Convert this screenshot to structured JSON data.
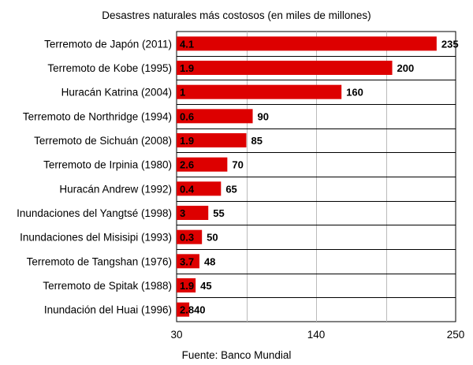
{
  "chart_data": {
    "type": "bar",
    "orientation": "horizontal",
    "title": "Desastres naturales más costosos (en miles de millones)",
    "source": "Fuente: Banco Mundial",
    "xlim": [
      30,
      250
    ],
    "xticks": [
      "30",
      "140",
      "250"
    ],
    "bar_color": "#dd0000",
    "grid": true,
    "categories": [
      "Terremoto de Japón (2011)",
      "Terremoto de Kobe (1995)",
      "Huracán Katrina (2004)",
      "Terremoto de Northridge (1994)",
      "Terremoto de Sichuán (2008)",
      "Terremoto de Irpinia (1980)",
      "Huracán Andrew (1992)",
      "Inundaciones del Yangtsé (1998)",
      "Inundaciones del Misisipi (1993)",
      "Terremoto de Tangshan (1976)",
      "Terremoto de Spitak (1988)",
      "Inundación del Huai (1996)"
    ],
    "values": [
      235,
      200,
      160,
      90,
      85,
      70,
      65,
      55,
      50,
      48,
      45,
      40
    ],
    "inner_labels": [
      "4.1",
      "1.9",
      "1",
      "0.6",
      "1.9",
      "2.6",
      "0.4",
      "3",
      "0.3",
      "3.7",
      "1.9",
      "2.8"
    ]
  }
}
